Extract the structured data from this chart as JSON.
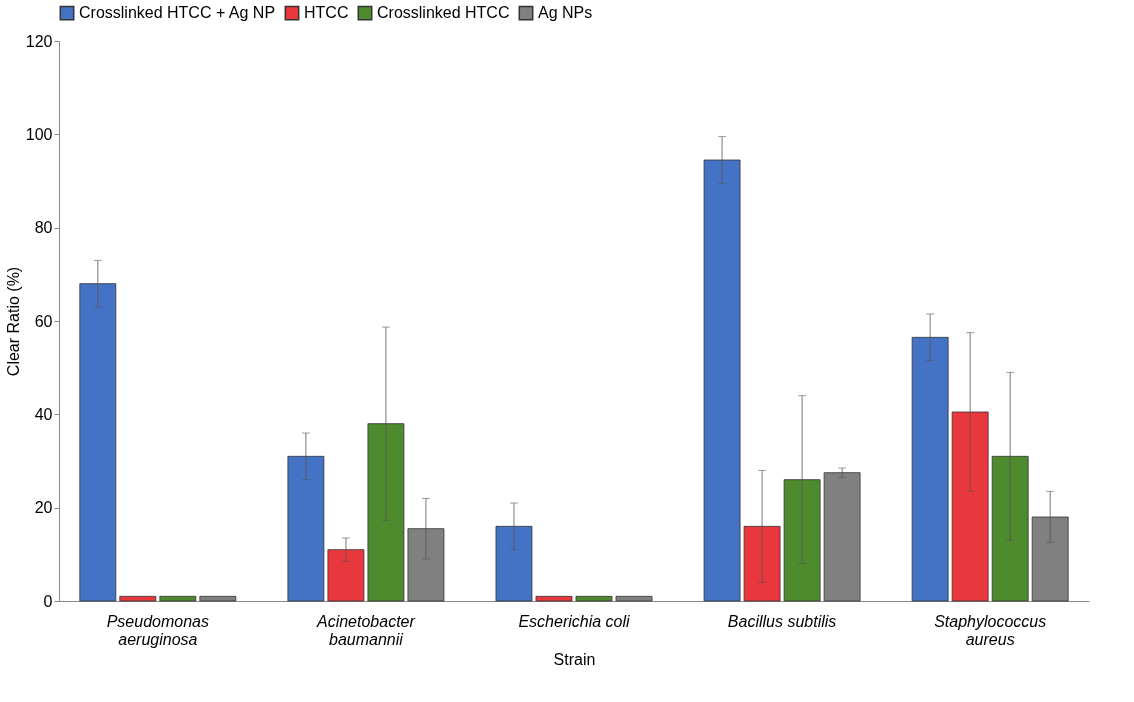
{
  "chart_data": {
    "type": "bar",
    "xlabel": "Strain",
    "ylabel": "Clear Ratio (%)",
    "categories": [
      "Pseudomonas aeruginosa",
      "Acinetobacter baumannii",
      "Escherichia coli",
      "Bacillus subtilis",
      "Staphylococcus aureus"
    ],
    "series": [
      {
        "name": "Crosslinked HTCC + Ag NP",
        "color": "#4472c4",
        "values": [
          68,
          31,
          16,
          94.5,
          56.5
        ],
        "errors": [
          5,
          5,
          5,
          5,
          5
        ]
      },
      {
        "name": "HTCC",
        "color": "#e8383d",
        "values": [
          1,
          11,
          1,
          16,
          40.5
        ],
        "errors": [
          null,
          2.5,
          null,
          12,
          17
        ]
      },
      {
        "name": "Crosslinked HTCC",
        "color": "#4e8a2e",
        "values": [
          1,
          38,
          1,
          26,
          31
        ],
        "errors": [
          null,
          20.7,
          null,
          18,
          18
        ]
      },
      {
        "name": "Ag NPs",
        "color": "#808080",
        "values": [
          1,
          15.5,
          1,
          27.5,
          18
        ],
        "errors": [
          null,
          6.5,
          null,
          1,
          5.5
        ]
      }
    ],
    "ylim": [
      0,
      120
    ],
    "yticks": [
      0,
      20,
      40,
      60,
      80,
      100,
      120
    ],
    "grid": false,
    "legend": "top"
  }
}
